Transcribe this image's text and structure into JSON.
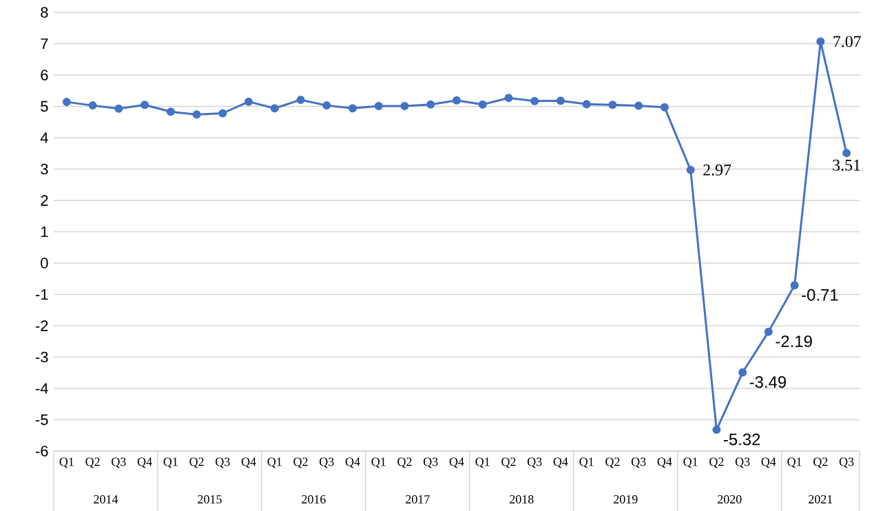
{
  "chart_data": {
    "type": "line",
    "categories": [
      "Q1",
      "Q2",
      "Q3",
      "Q4",
      "Q1",
      "Q2",
      "Q3",
      "Q4",
      "Q1",
      "Q2",
      "Q3",
      "Q4",
      "Q1",
      "Q2",
      "Q3",
      "Q4",
      "Q1",
      "Q2",
      "Q3",
      "Q4",
      "Q1",
      "Q2",
      "Q3",
      "Q4",
      "Q1",
      "Q2",
      "Q3",
      "Q4",
      "Q1",
      "Q2",
      "Q3"
    ],
    "series": [
      {
        "color": "#4472c4",
        "values": [
          5.14,
          5.03,
          4.93,
          5.05,
          4.83,
          4.74,
          4.78,
          5.15,
          4.94,
          5.21,
          5.03,
          4.94,
          5.01,
          5.01,
          5.06,
          5.19,
          5.06,
          5.27,
          5.17,
          5.18,
          5.07,
          5.05,
          5.02,
          4.97,
          2.97,
          -5.32,
          -3.49,
          -2.19,
          -0.71,
          7.07,
          3.51
        ],
        "value_labels": [
          null,
          null,
          null,
          null,
          null,
          null,
          null,
          null,
          null,
          null,
          null,
          null,
          null,
          null,
          null,
          null,
          null,
          null,
          null,
          null,
          null,
          null,
          null,
          null,
          "2.97",
          "-5.32",
          "-3.49",
          "-2.19",
          "-0.71",
          "7.07",
          "3.51"
        ]
      }
    ],
    "annotations": [
      "2014",
      "2015",
      "2016",
      "2017",
      "2018",
      "2019",
      "2020",
      "2021"
    ],
    "ylim": [
      -6,
      8
    ],
    "yticks": [
      -6,
      -5,
      -4,
      -3,
      -2,
      -1,
      0,
      1,
      2,
      3,
      4,
      5,
      6,
      7,
      8
    ],
    "grid": "y",
    "marker": "circle",
    "line_style": "solid"
  }
}
